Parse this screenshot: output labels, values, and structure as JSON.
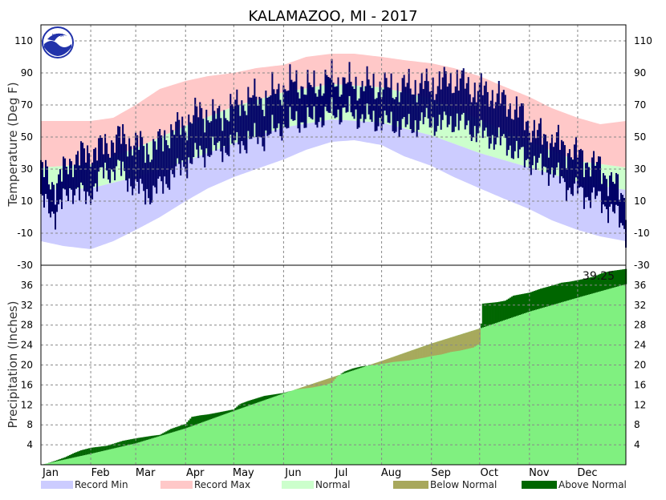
{
  "chart_data": {
    "type": "area",
    "title": "KALAMAZOO, MI - 2017",
    "colors": {
      "record_min": "#ccccff",
      "record_max": "#ffc8c8",
      "normal": "#ccffcc",
      "observed": "#000066",
      "below_normal": "#a8a85c",
      "above_normal": "#006600",
      "normal_precip": "#80f080",
      "logo_blue": "#2233aa"
    },
    "months": [
      "Jan",
      "Feb",
      "Mar",
      "Apr",
      "May",
      "Jun",
      "Jul",
      "Aug",
      "Sep",
      "Oct",
      "Nov",
      "Dec"
    ],
    "legend": [
      "Record Min",
      "Record Max",
      "Normal",
      "Below Normal",
      "Above Normal"
    ],
    "logo_text": "NOAA",
    "temperature": {
      "ylabel": "Temperature (Deg F)",
      "ylim": [
        -30,
        120
      ],
      "yticks": [
        -30,
        -10,
        10,
        30,
        50,
        70,
        90,
        110
      ],
      "record_max_doy": [
        1,
        15,
        32,
        46,
        60,
        75,
        91,
        105,
        121,
        135,
        152,
        166,
        182,
        196,
        213,
        227,
        244,
        258,
        274,
        288,
        305,
        319,
        335,
        349,
        365
      ],
      "record_max": [
        60,
        60,
        60,
        62,
        70,
        80,
        85,
        88,
        90,
        93,
        95,
        100,
        102,
        102,
        100,
        98,
        96,
        93,
        88,
        82,
        75,
        68,
        62,
        58,
        60
      ],
      "normal_high_doy": [
        1,
        32,
        60,
        91,
        121,
        152,
        182,
        213,
        244,
        274,
        305,
        335,
        365
      ],
      "normal_high": [
        31,
        33,
        43,
        57,
        69,
        78,
        83,
        81,
        74,
        61,
        47,
        35,
        31
      ],
      "normal_low": [
        17,
        18,
        25,
        35,
        46,
        56,
        61,
        59,
        51,
        40,
        31,
        22,
        17
      ],
      "record_min_doy": [
        1,
        15,
        32,
        46,
        60,
        75,
        91,
        105,
        121,
        135,
        152,
        166,
        182,
        196,
        213,
        227,
        244,
        258,
        274,
        288,
        305,
        319,
        335,
        349,
        365
      ],
      "record_min": [
        -15,
        -18,
        -20,
        -15,
        -8,
        0,
        10,
        18,
        25,
        30,
        36,
        42,
        47,
        48,
        45,
        38,
        32,
        25,
        18,
        12,
        5,
        -2,
        -8,
        -12,
        -15
      ],
      "obs_high_doy": [
        1,
        10,
        20,
        30,
        40,
        50,
        60,
        70,
        80,
        90,
        100,
        110,
        120,
        130,
        140,
        150,
        160,
        170,
        180,
        190,
        200,
        210,
        220,
        230,
        240,
        250,
        260,
        270,
        280,
        290,
        300,
        310,
        320,
        330,
        340,
        350,
        360,
        365
      ],
      "obs_high": [
        30,
        20,
        36,
        40,
        44,
        50,
        46,
        42,
        52,
        58,
        66,
        62,
        68,
        74,
        74,
        80,
        84,
        80,
        86,
        84,
        82,
        82,
        80,
        82,
        82,
        84,
        86,
        80,
        78,
        72,
        64,
        52,
        48,
        42,
        36,
        30,
        18,
        12
      ],
      "obs_low_doy": [
        1,
        10,
        20,
        30,
        40,
        50,
        60,
        70,
        80,
        90,
        100,
        110,
        120,
        130,
        140,
        150,
        160,
        170,
        180,
        190,
        200,
        210,
        220,
        230,
        240,
        250,
        260,
        270,
        280,
        290,
        300,
        310,
        320,
        330,
        340,
        350,
        360,
        365
      ],
      "obs_low": [
        10,
        2,
        18,
        12,
        28,
        30,
        18,
        14,
        24,
        32,
        40,
        42,
        44,
        48,
        50,
        56,
        60,
        60,
        64,
        66,
        62,
        60,
        58,
        56,
        60,
        58,
        60,
        54,
        50,
        46,
        38,
        32,
        28,
        18,
        14,
        10,
        0,
        -8
      ]
    },
    "precipitation": {
      "ylabel": "Precipitation (Inches)",
      "ylim": [
        0,
        40
      ],
      "yticks": [
        4,
        8,
        12,
        16,
        20,
        24,
        28,
        32,
        36
      ],
      "total_label": "39.25",
      "normal_doy": [
        1,
        32,
        60,
        91,
        121,
        152,
        182,
        213,
        244,
        274,
        305,
        335,
        365
      ],
      "normal_cum": [
        0,
        2.2,
        4.3,
        7.3,
        10.8,
        14.3,
        17.5,
        20.8,
        24.3,
        27.3,
        30.7,
        33.5,
        36.2
      ],
      "observed_doy": [
        1,
        5,
        10,
        16,
        22,
        26,
        32,
        42,
        52,
        60,
        64,
        70,
        75,
        82,
        91,
        95,
        100,
        105,
        110,
        121,
        125,
        130,
        140,
        152,
        160,
        170,
        175,
        182,
        185,
        190,
        195,
        200,
        205,
        210,
        215,
        220,
        230,
        240,
        244,
        250,
        256,
        262,
        270,
        274,
        276,
        285,
        290,
        295,
        305,
        312,
        320,
        325,
        330,
        335,
        345,
        350,
        355,
        365
      ],
      "observed_cum": [
        0,
        0.3,
        0.8,
        1.5,
        2.4,
        2.9,
        3.4,
        3.8,
        4.8,
        5.3,
        5.5,
        5.8,
        6.0,
        7.2,
        8.2,
        9.6,
        9.9,
        10.1,
        10.4,
        11.1,
        12.2,
        12.8,
        13.8,
        14.4,
        15.1,
        15.5,
        15.8,
        16.4,
        17.6,
        18.7,
        19.3,
        19.7,
        19.9,
        20.1,
        20.3,
        20.6,
        20.9,
        21.5,
        21.8,
        22.1,
        22.6,
        22.9,
        23.5,
        24.3,
        32.3,
        32.6,
        32.9,
        33.9,
        34.5,
        35.3,
        36.0,
        36.5,
        36.7,
        37.0,
        37.7,
        38.4,
        38.8,
        39.25
      ]
    }
  }
}
